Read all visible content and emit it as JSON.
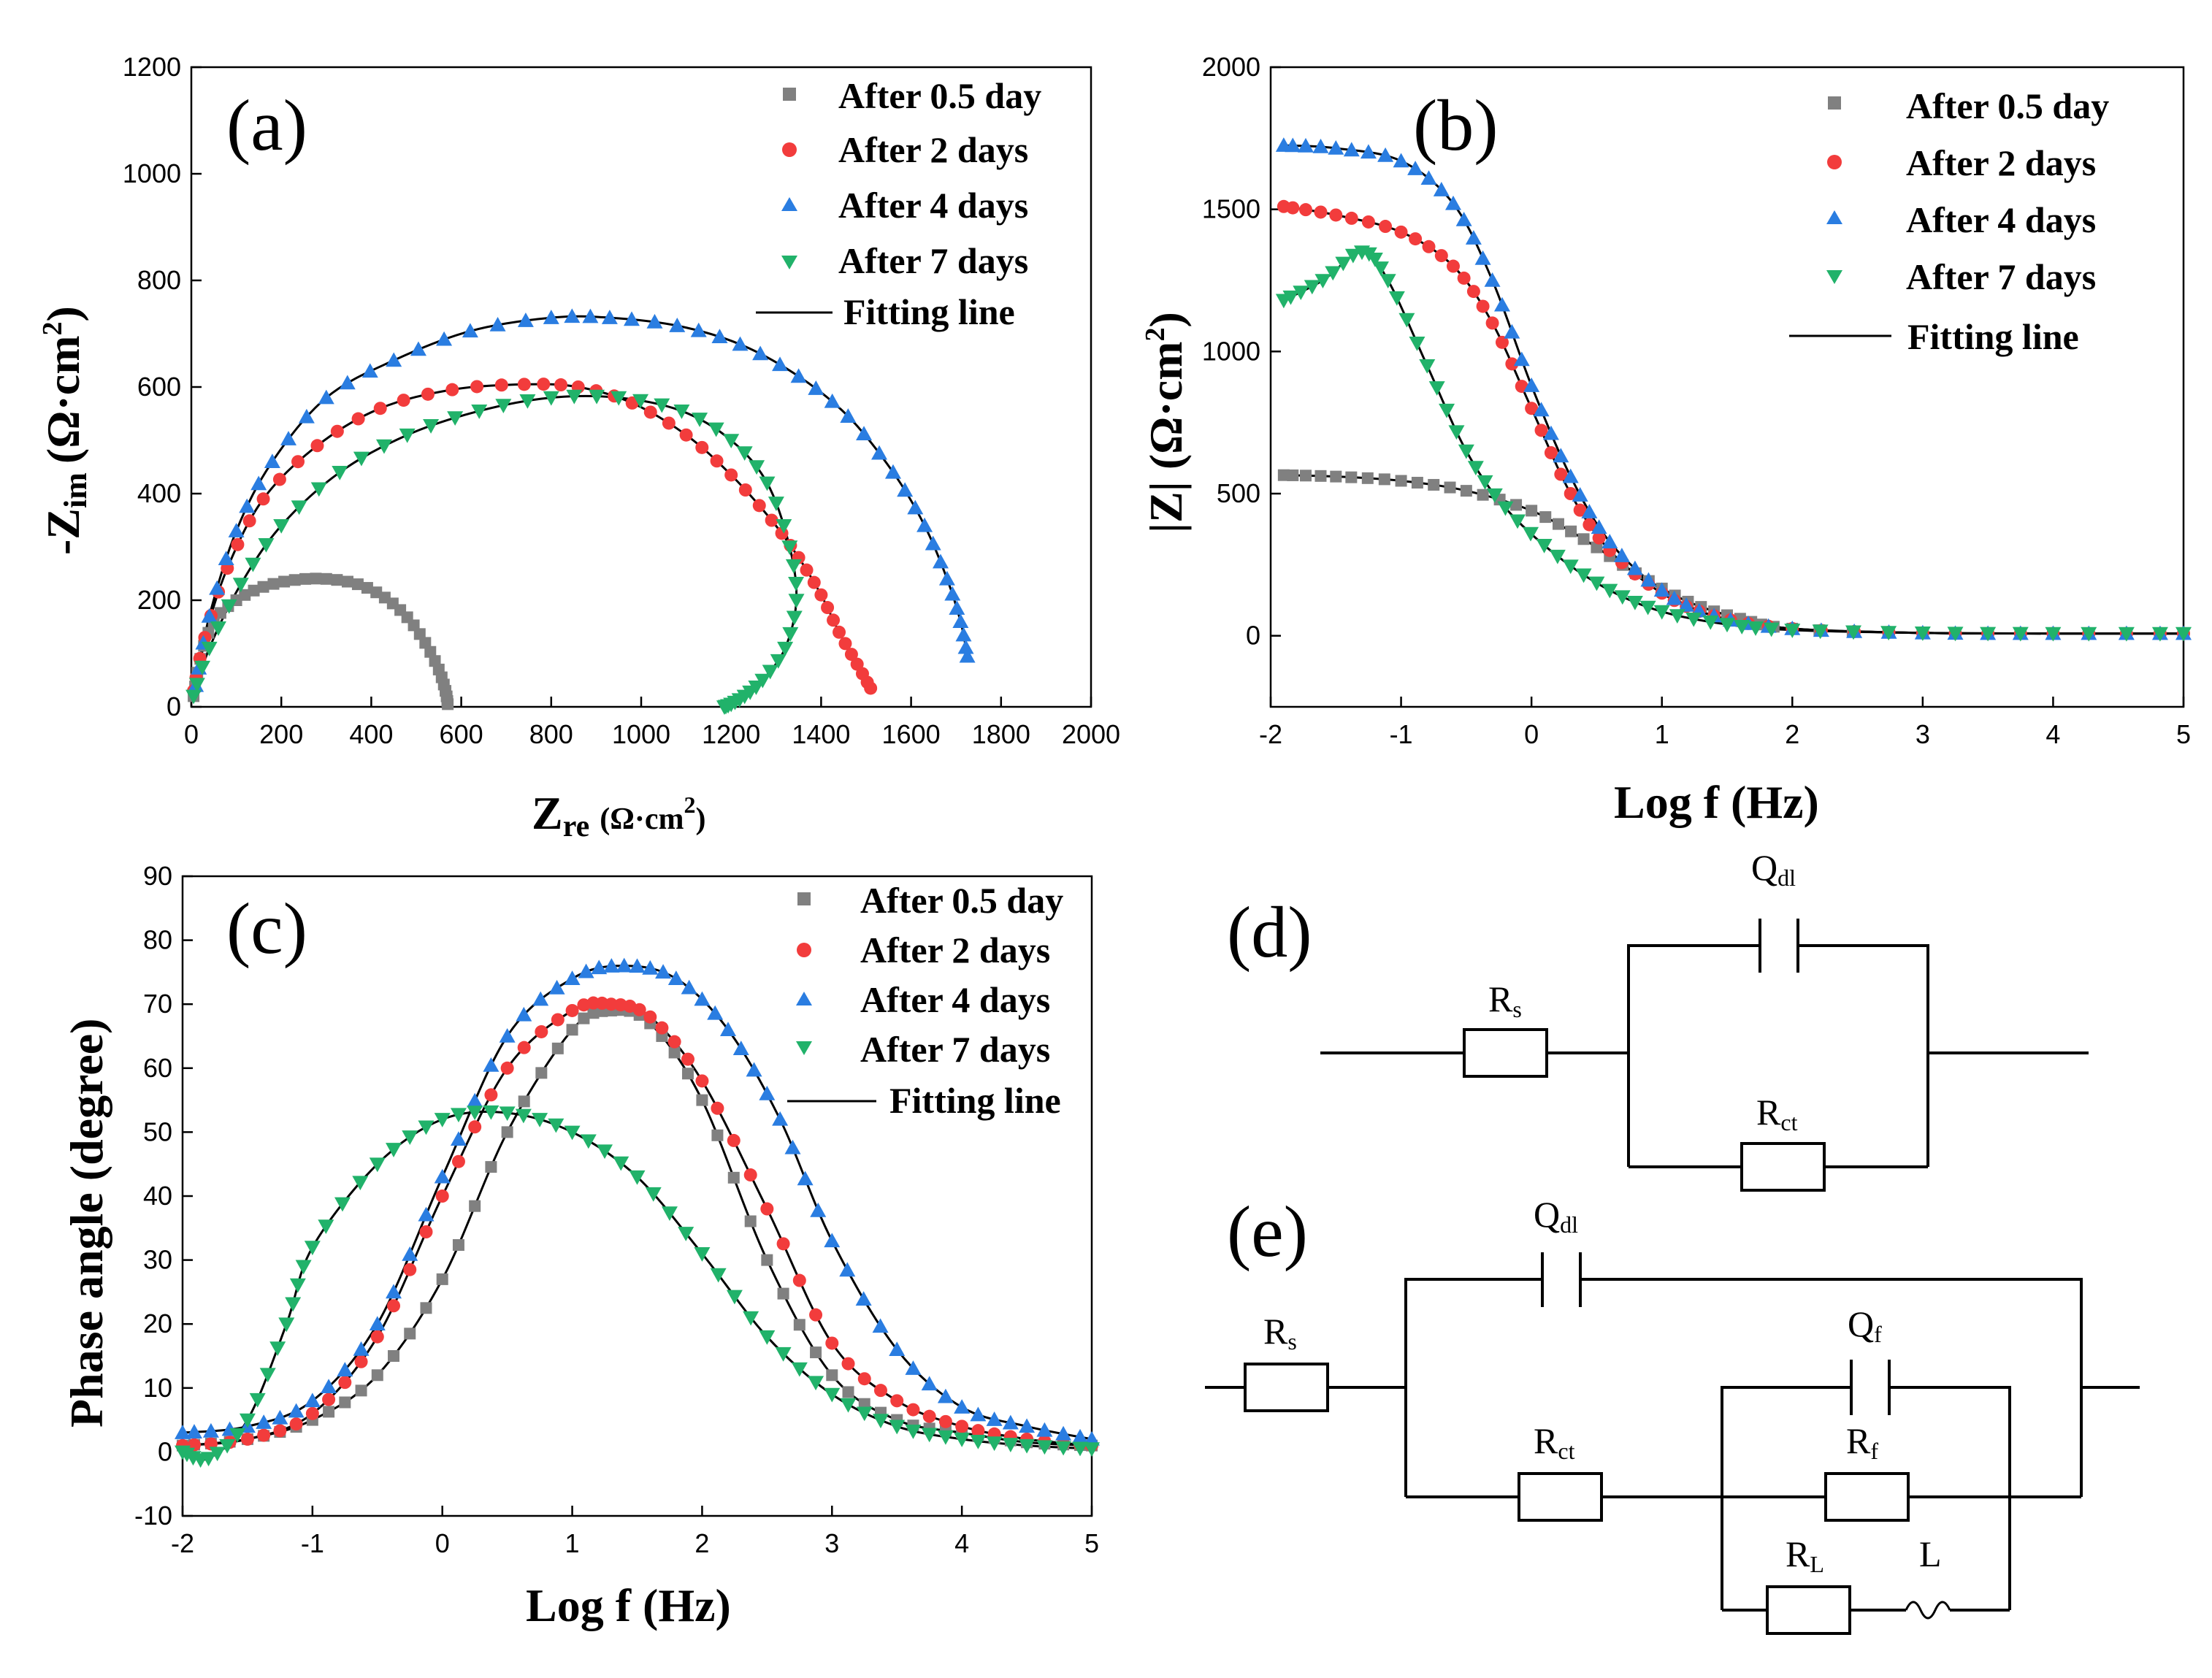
{
  "colors": {
    "after_0_5_day": "#808080",
    "after_2_days": "#f23c3c",
    "after_4_days": "#2a7de1",
    "after_7_days": "#21b26a",
    "fit": "#000000"
  },
  "legend": {
    "a": [
      "After 0.5 day",
      "After 2 days",
      "After 4 days",
      "After 7 days",
      "Fitting line"
    ],
    "b": [
      "After 0.5 day",
      "After 2 days",
      "After 4 days",
      "After 7 days",
      "Fitting line"
    ],
    "c": [
      "After 0.5 day",
      "After 2 days",
      "After 4 days",
      "After 7 days",
      "Fitting line"
    ]
  },
  "chart_data": [
    {
      "panel": "(a)",
      "type": "scatter",
      "xlabel_main": "Z",
      "xlabel_sub": "re",
      "xlabel_unit": "(Ω·cm",
      "xlabel_sup": "2",
      "xlabel_close": ")",
      "ylabel_main": "-Z",
      "ylabel_sub": "im",
      "ylabel_unit": "(Ω·cm",
      "ylabel_sup": "2",
      "ylabel_close": ")",
      "xlim": [
        0,
        2000
      ],
      "ylim": [
        0,
        1200
      ],
      "xticks": [
        "0",
        "200",
        "400",
        "600",
        "800",
        "1000",
        "1200",
        "1400",
        "1600",
        "1800",
        "2000"
      ],
      "yticks": [
        "0",
        "200",
        "400",
        "600",
        "800",
        "1000",
        "1200"
      ],
      "legend_position": "top-right",
      "series": [
        {
          "name": "After 0.5 day",
          "marker": "square",
          "x": [
            5,
            20,
            50,
            100,
            160,
            230,
            300,
            370,
            430,
            480,
            520,
            550,
            565,
            570
          ],
          "y": [
            20,
            90,
            160,
            200,
            225,
            238,
            240,
            230,
            205,
            168,
            120,
            70,
            30,
            5
          ]
        },
        {
          "name": "After 2 days",
          "marker": "circle",
          "x": [
            5,
            30,
            80,
            160,
            280,
            420,
            580,
            740,
            860,
            980,
            1100,
            1200,
            1290,
            1350,
            1400,
            1440,
            1480,
            1510
          ],
          "y": [
            30,
            130,
            260,
            390,
            490,
            560,
            595,
            605,
            600,
            570,
            510,
            435,
            350,
            280,
            210,
            140,
            80,
            35
          ]
        },
        {
          "name": "After 4 days",
          "marker": "triangle-up",
          "x": [
            10,
            40,
            100,
            180,
            300,
            450,
            620,
            800,
            930,
            1080,
            1220,
            1350,
            1460,
            1560,
            1630,
            1680,
            1710,
            1725
          ],
          "y": [
            40,
            170,
            330,
            460,
            580,
            650,
            705,
            730,
            730,
            715,
            680,
            620,
            545,
            440,
            340,
            240,
            160,
            95
          ]
        },
        {
          "name": "After 7 days",
          "marker": "triangle-down",
          "x": [
            5,
            40,
            110,
            200,
            330,
            480,
            640,
            800,
            950,
            1090,
            1200,
            1280,
            1330,
            1345,
            1320,
            1270,
            1230,
            1200,
            1185
          ],
          "y": [
            20,
            110,
            230,
            340,
            440,
            510,
            555,
            580,
            580,
            555,
            500,
            420,
            300,
            200,
            110,
            50,
            20,
            5,
            0
          ]
        }
      ]
    },
    {
      "panel": "(b)",
      "type": "scatter",
      "xlabel": "Log f (Hz)",
      "ylabel_text": "|Z| (Ω·cm",
      "ylabel_sup": "2",
      "ylabel_close": ")",
      "xlim": [
        -2,
        5
      ],
      "ylim": [
        -250,
        2000
      ],
      "xticks": [
        "-2",
        "-1",
        "0",
        "1",
        "2",
        "3",
        "4",
        "5"
      ],
      "yticks": [
        "0",
        "500",
        "1000",
        "1500",
        "2000"
      ],
      "legend_position": "top-right",
      "series": [
        {
          "name": "After 0.5 day",
          "marker": "square",
          "x": [
            -1.9,
            -1.5,
            -1.0,
            -0.5,
            0.0,
            0.4,
            0.8,
            1.2,
            1.6,
            2.0,
            3.0,
            4.0,
            5.0
          ],
          "y": [
            565,
            560,
            545,
            510,
            440,
            340,
            220,
            120,
            60,
            25,
            10,
            8,
            8
          ]
        },
        {
          "name": "After 2 days",
          "marker": "circle",
          "x": [
            -1.9,
            -1.5,
            -1.0,
            -0.6,
            -0.3,
            0.0,
            0.3,
            0.6,
            1.0,
            1.4,
            2.0,
            3.0,
            4.0,
            5.0
          ],
          "y": [
            1510,
            1480,
            1420,
            1300,
            1100,
            800,
            500,
            300,
            150,
            70,
            25,
            10,
            8,
            8
          ]
        },
        {
          "name": "After 4 days",
          "marker": "triangle-up",
          "x": [
            -1.9,
            -1.5,
            -1.0,
            -0.6,
            -0.3,
            0.0,
            0.3,
            0.6,
            1.0,
            1.4,
            2.0,
            3.0,
            4.0,
            5.0
          ],
          "y": [
            1725,
            1715,
            1670,
            1520,
            1250,
            880,
            560,
            330,
            160,
            70,
            25,
            10,
            8,
            8
          ]
        },
        {
          "name": "After 7 days",
          "marker": "triangle-down",
          "x": [
            -1.9,
            -1.6,
            -1.3,
            -1.1,
            -0.8,
            -0.5,
            -0.2,
            0.2,
            0.6,
            1.0,
            1.5,
            2.0,
            3.0,
            4.0,
            5.0
          ],
          "y": [
            1180,
            1250,
            1350,
            1250,
            950,
            650,
            450,
            280,
            160,
            85,
            40,
            20,
            10,
            8,
            8
          ]
        }
      ]
    },
    {
      "panel": "(c)",
      "type": "scatter",
      "xlabel": "Log f (Hz)",
      "ylabel": "Phase angle (degree)",
      "xlim": [
        -2,
        5
      ],
      "ylim": [
        -10,
        90
      ],
      "xticks": [
        "-2",
        "-1",
        "0",
        "1",
        "2",
        "3",
        "4",
        "5"
      ],
      "yticks": [
        "-10",
        "0",
        "10",
        "20",
        "30",
        "40",
        "50",
        "60",
        "70",
        "80",
        "90"
      ],
      "legend_position": "top-right",
      "series": [
        {
          "name": "After 0.5 day",
          "marker": "square",
          "x": [
            -2.0,
            -1.5,
            -1.0,
            -0.5,
            0.0,
            0.5,
            1.0,
            1.3,
            1.6,
            2.0,
            2.5,
            3.0,
            3.5,
            4.0,
            4.5,
            5.0
          ],
          "y": [
            1,
            2,
            5,
            12,
            27,
            50,
            66,
            69,
            67,
            55,
            30,
            12,
            5,
            3,
            1.5,
            1
          ]
        },
        {
          "name": "After 2 days",
          "marker": "circle",
          "x": [
            -2.0,
            -1.5,
            -1.0,
            -0.5,
            0.0,
            0.5,
            1.0,
            1.3,
            1.6,
            2.0,
            2.5,
            3.0,
            3.5,
            4.0,
            4.5,
            5.0
          ],
          "y": [
            1,
            2,
            6,
            18,
            40,
            60,
            69,
            70,
            68,
            58,
            38,
            17,
            8,
            4,
            2,
            1
          ]
        },
        {
          "name": "After 4 days",
          "marker": "triangle-up",
          "x": [
            -2.0,
            -1.5,
            -1.0,
            -0.5,
            0.0,
            0.5,
            1.0,
            1.4,
            1.8,
            2.2,
            2.6,
            3.0,
            3.5,
            4.0,
            4.5,
            5.0
          ],
          "y": [
            3,
            4,
            8,
            20,
            43,
            65,
            74,
            76,
            74,
            66,
            52,
            33,
            16,
            7,
            4,
            2
          ]
        },
        {
          "name": "After 7 days",
          "marker": "triangle-down",
          "x": [
            -2.0,
            -1.8,
            -1.5,
            -1.2,
            -1.0,
            -0.5,
            0.0,
            0.5,
            1.0,
            1.5,
            2.0,
            2.5,
            3.0,
            3.5,
            4.0,
            4.5,
            5.0
          ],
          "y": [
            0,
            -1,
            5,
            20,
            32,
            45,
            52,
            53,
            50,
            43,
            31,
            18,
            9,
            4,
            2,
            1,
            0.5
          ]
        }
      ]
    }
  ],
  "panel_labels": {
    "a": "(a)",
    "b": "(b)",
    "c": "(c)",
    "d": "(d)",
    "e": "(e)"
  },
  "circuit_d": {
    "Rs": {
      "main": "R",
      "sub": "s"
    },
    "Qdl": {
      "main": "Q",
      "sub": "dl"
    },
    "Rct": {
      "main": "R",
      "sub": "ct"
    }
  },
  "circuit_e": {
    "Rs": {
      "main": "R",
      "sub": "s"
    },
    "Qdl": {
      "main": "Q",
      "sub": "dl"
    },
    "Qf": {
      "main": "Q",
      "sub": "f"
    },
    "Rct": {
      "main": "R",
      "sub": "ct"
    },
    "Rf": {
      "main": "R",
      "sub": "f"
    },
    "RL": {
      "main": "R",
      "sub": "L"
    },
    "L": "L"
  }
}
